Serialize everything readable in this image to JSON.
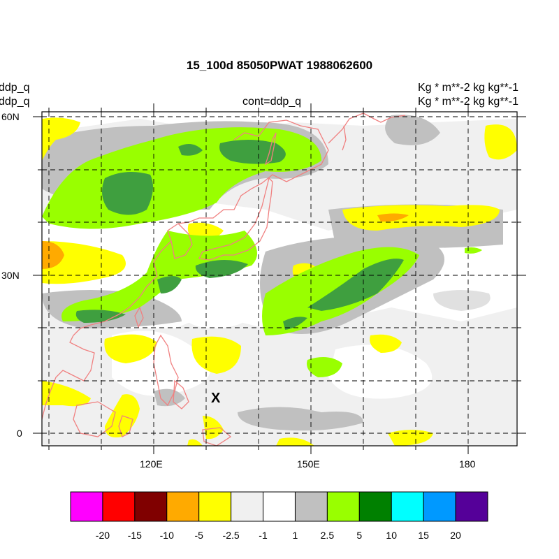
{
  "title": "15_100d 85050PWAT  1988062600",
  "left_labels": [
    "ddp_q",
    "ddp_q"
  ],
  "right_labels": [
    "Kg  * m**-2 kg kg**-1",
    "Kg  * m**-2 kg kg**-1"
  ],
  "center_label": "cont=ddp_q",
  "marker_label": "X",
  "map": {
    "lat_ticks": [
      "60N",
      "30N",
      "0"
    ],
    "lon_ticks": [
      "120E",
      "150E",
      "180"
    ]
  },
  "colorbar": {
    "colors": [
      "#ff00ff",
      "#ff0000",
      "#800000",
      "#ffaa00",
      "#ffff00",
      "#f0f0f0",
      "#ffffff",
      "#c0c0c0",
      "#99ff00",
      "#008000",
      "#00ffff",
      "#0099ff",
      "#550099"
    ],
    "labels": [
      "-20",
      "-15",
      "-10",
      "-5",
      "-2.5",
      "-1",
      "1",
      "2.5",
      "5",
      "10",
      "15",
      "20"
    ]
  }
}
